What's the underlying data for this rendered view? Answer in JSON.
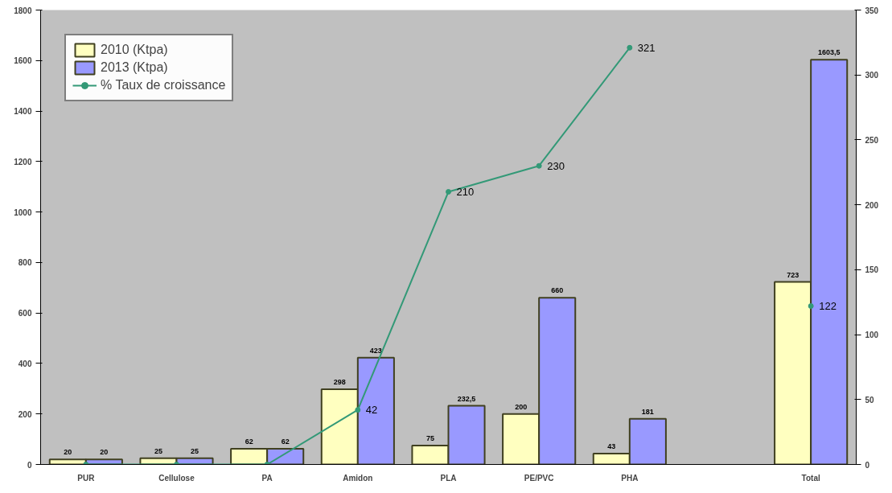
{
  "chart_data": {
    "type": "bar",
    "categories": [
      "PUR",
      "Cellulose",
      "PA",
      "Amidon",
      "PLA",
      "PE/PVC",
      "PHA",
      null,
      "Total"
    ],
    "series": [
      {
        "name": "2010 (Ktpa)",
        "color": "#ffffc0",
        "values": [
          20,
          25,
          62,
          298,
          75,
          200,
          43,
          null,
          723
        ],
        "value_labels": [
          "20",
          "25",
          "62",
          "298",
          "75",
          "200",
          "43",
          null,
          "723"
        ]
      },
      {
        "name": "2013 (Ktpa)",
        "color": "#9999ff",
        "values": [
          20,
          25,
          62,
          423,
          232.5,
          660,
          181,
          null,
          1603.5
        ],
        "value_labels": [
          "20",
          "25",
          "62",
          "423",
          "232,5",
          "660",
          "181",
          null,
          "1603,5"
        ]
      },
      {
        "name": "% Taux de croissance",
        "type": "line",
        "axis": "y2",
        "color": "#339977",
        "values": [
          0,
          0,
          0,
          42,
          210,
          230,
          321,
          null,
          122
        ],
        "value_labels": [
          null,
          null,
          null,
          "42",
          "210",
          "230",
          "321",
          null,
          "122"
        ]
      }
    ],
    "ylim": [
      0,
      1800
    ],
    "yticks": [
      0,
      200,
      400,
      600,
      800,
      1000,
      1200,
      1400,
      1600,
      1800
    ],
    "y2lim": [
      0,
      350
    ],
    "y2ticks": [
      0,
      50,
      100,
      150,
      200,
      250,
      300,
      350
    ],
    "grid": false,
    "legend": "top left",
    "marker": "circle",
    "line_style": "solid"
  }
}
